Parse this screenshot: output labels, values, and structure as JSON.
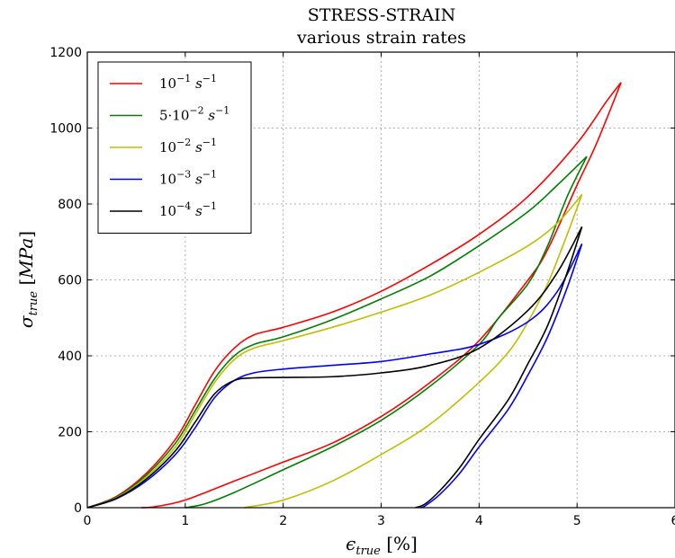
{
  "chart_data": {
    "type": "line",
    "title": "STRESS-STRAIN",
    "subtitle": "various strain rates",
    "xlabel": "ϵ_true [%]",
    "ylabel": "σ_true [MPa]",
    "xlim": [
      0,
      6
    ],
    "ylim": [
      0,
      1200
    ],
    "xticks": [
      "0",
      "1",
      "2",
      "3",
      "4",
      "5",
      "6"
    ],
    "yticks": [
      "0",
      "200",
      "400",
      "600",
      "800",
      "1000",
      "1200"
    ],
    "grid": true,
    "legend_position": "top-left",
    "series": [
      {
        "name": "10^-1 s^-1",
        "legend": {
          "base": "10",
          "exp": "−1",
          "unit": "s",
          "unit_exp": "−1"
        },
        "color": "#ff0000",
        "loading": [
          [
            0,
            0
          ],
          [
            0.3,
            30
          ],
          [
            0.6,
            90
          ],
          [
            0.9,
            180
          ],
          [
            1.1,
            270
          ],
          [
            1.3,
            360
          ],
          [
            1.5,
            420
          ],
          [
            1.7,
            455
          ],
          [
            2.0,
            475
          ],
          [
            2.5,
            515
          ],
          [
            3.0,
            570
          ],
          [
            3.5,
            640
          ],
          [
            4.0,
            720
          ],
          [
            4.5,
            820
          ],
          [
            5.0,
            960
          ],
          [
            5.3,
            1070
          ],
          [
            5.45,
            1120
          ]
        ],
        "unloading": [
          [
            5.45,
            1120
          ],
          [
            5.2,
            960
          ],
          [
            5.0,
            850
          ],
          [
            4.7,
            680
          ],
          [
            4.5,
            600
          ],
          [
            4.0,
            440
          ],
          [
            3.5,
            330
          ],
          [
            3.0,
            240
          ],
          [
            2.5,
            170
          ],
          [
            2.0,
            120
          ],
          [
            1.5,
            70
          ],
          [
            1.0,
            20
          ],
          [
            0.7,
            3
          ],
          [
            0.55,
            0
          ]
        ]
      },
      {
        "name": "5·10^-2 s^-1",
        "legend": {
          "base": "5·10",
          "exp": "−2",
          "unit": "s",
          "unit_exp": "−1"
        },
        "color": "#008000",
        "loading": [
          [
            0,
            0
          ],
          [
            0.3,
            28
          ],
          [
            0.6,
            85
          ],
          [
            0.9,
            170
          ],
          [
            1.1,
            255
          ],
          [
            1.3,
            340
          ],
          [
            1.5,
            400
          ],
          [
            1.7,
            430
          ],
          [
            2.0,
            450
          ],
          [
            2.5,
            495
          ],
          [
            3.0,
            550
          ],
          [
            3.5,
            610
          ],
          [
            4.0,
            690
          ],
          [
            4.5,
            780
          ],
          [
            4.8,
            850
          ],
          [
            5.1,
            925
          ]
        ],
        "unloading": [
          [
            5.1,
            925
          ],
          [
            4.9,
            820
          ],
          [
            4.7,
            690
          ],
          [
            4.5,
            590
          ],
          [
            4.2,
            500
          ],
          [
            4.0,
            430
          ],
          [
            3.5,
            320
          ],
          [
            3.0,
            230
          ],
          [
            2.5,
            160
          ],
          [
            2.0,
            100
          ],
          [
            1.5,
            40
          ],
          [
            1.2,
            10
          ],
          [
            1.0,
            0
          ]
        ]
      },
      {
        "name": "10^-2 s^-1",
        "legend": {
          "base": "10",
          "exp": "−2",
          "unit": "s",
          "unit_exp": "−1"
        },
        "color": "#bfbf00",
        "loading": [
          [
            0,
            0
          ],
          [
            0.3,
            26
          ],
          [
            0.6,
            80
          ],
          [
            0.9,
            160
          ],
          [
            1.1,
            245
          ],
          [
            1.3,
            330
          ],
          [
            1.5,
            390
          ],
          [
            1.7,
            420
          ],
          [
            2.0,
            440
          ],
          [
            2.5,
            475
          ],
          [
            3.0,
            515
          ],
          [
            3.5,
            560
          ],
          [
            4.0,
            620
          ],
          [
            4.5,
            690
          ],
          [
            4.8,
            750
          ],
          [
            5.05,
            825
          ]
        ],
        "unloading": [
          [
            5.05,
            825
          ],
          [
            4.9,
            720
          ],
          [
            4.7,
            590
          ],
          [
            4.5,
            490
          ],
          [
            4.3,
            410
          ],
          [
            4.0,
            330
          ],
          [
            3.5,
            220
          ],
          [
            3.0,
            140
          ],
          [
            2.5,
            70
          ],
          [
            2.0,
            20
          ],
          [
            1.6,
            0
          ]
        ]
      },
      {
        "name": "10^-3 s^-1",
        "legend": {
          "base": "10",
          "exp": "−3",
          "unit": "s",
          "unit_exp": "−1"
        },
        "color": "#0000ff",
        "loading": [
          [
            0,
            0
          ],
          [
            0.3,
            24
          ],
          [
            0.6,
            70
          ],
          [
            0.9,
            140
          ],
          [
            1.1,
            210
          ],
          [
            1.3,
            290
          ],
          [
            1.5,
            335
          ],
          [
            1.7,
            355
          ],
          [
            2.0,
            365
          ],
          [
            2.5,
            375
          ],
          [
            3.0,
            385
          ],
          [
            3.5,
            405
          ],
          [
            4.0,
            430
          ],
          [
            4.5,
            490
          ],
          [
            4.8,
            570
          ],
          [
            5.05,
            695
          ]
        ],
        "unloading": [
          [
            5.05,
            695
          ],
          [
            4.9,
            580
          ],
          [
            4.7,
            450
          ],
          [
            4.5,
            350
          ],
          [
            4.3,
            260
          ],
          [
            4.0,
            160
          ],
          [
            3.8,
            90
          ],
          [
            3.6,
            35
          ],
          [
            3.45,
            5
          ],
          [
            3.4,
            0
          ]
        ]
      },
      {
        "name": "10^-4 s^-1",
        "legend": {
          "base": "10",
          "exp": "−4",
          "unit": "s",
          "unit_exp": "−1"
        },
        "color": "#000000",
        "loading": [
          [
            0,
            0
          ],
          [
            0.3,
            25
          ],
          [
            0.6,
            75
          ],
          [
            0.9,
            150
          ],
          [
            1.1,
            225
          ],
          [
            1.3,
            300
          ],
          [
            1.5,
            335
          ],
          [
            1.7,
            342
          ],
          [
            2.0,
            343
          ],
          [
            2.5,
            345
          ],
          [
            3.0,
            355
          ],
          [
            3.5,
            375
          ],
          [
            4.0,
            420
          ],
          [
            4.5,
            520
          ],
          [
            4.8,
            620
          ],
          [
            5.05,
            740
          ]
        ],
        "unloading": [
          [
            5.05,
            740
          ],
          [
            4.9,
            620
          ],
          [
            4.7,
            480
          ],
          [
            4.5,
            380
          ],
          [
            4.3,
            285
          ],
          [
            4.0,
            180
          ],
          [
            3.8,
            105
          ],
          [
            3.6,
            45
          ],
          [
            3.45,
            10
          ],
          [
            3.35,
            0
          ]
        ]
      }
    ]
  }
}
